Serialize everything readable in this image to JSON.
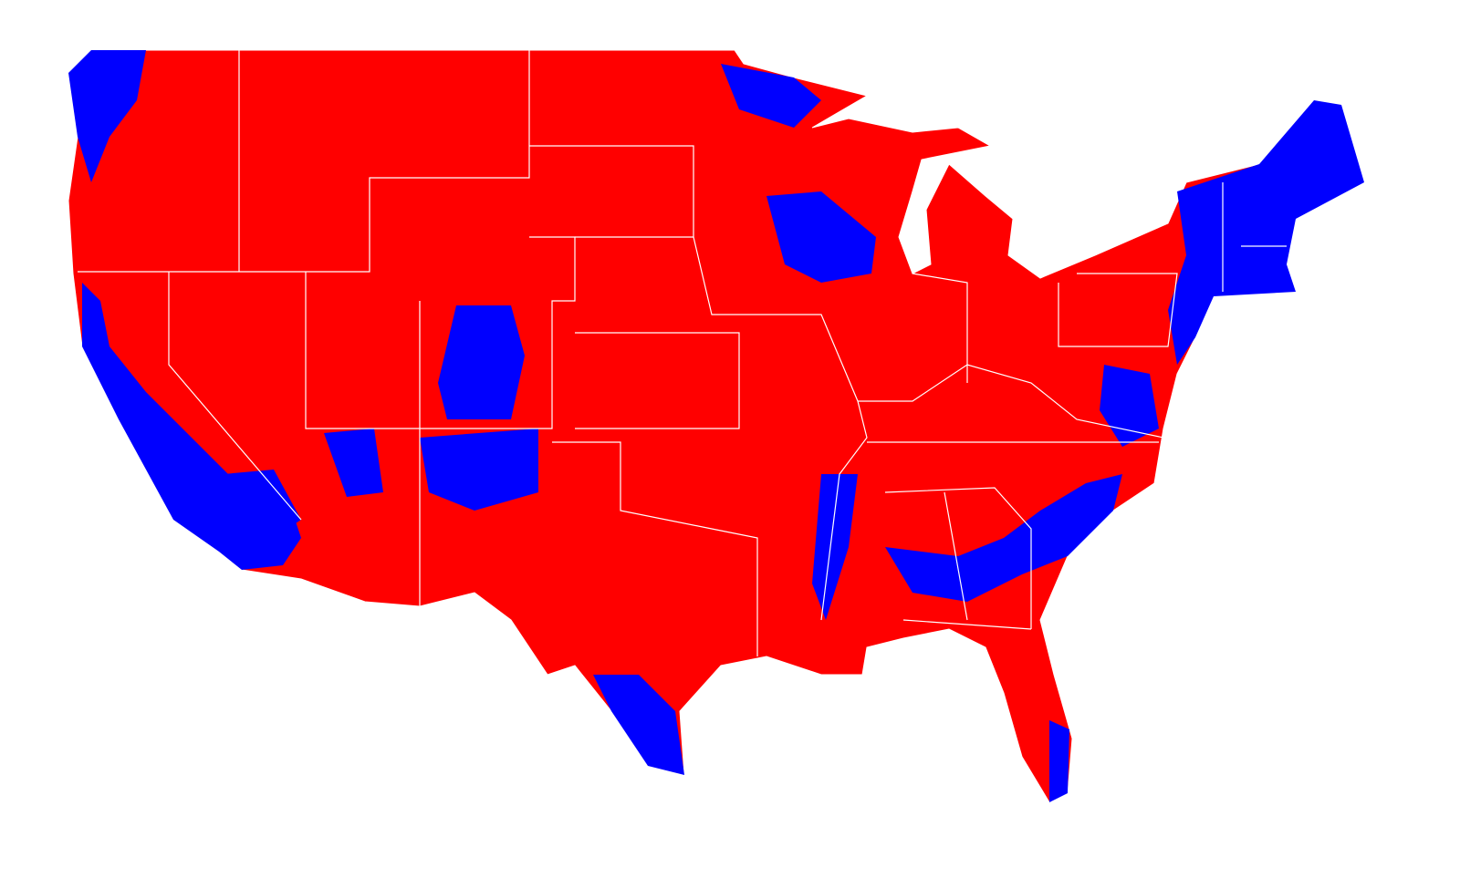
{
  "map": {
    "majority_color": "#ff0000",
    "minority_color": "#0000ff",
    "border_color": "#ffffff",
    "background": "#ffffff"
  }
}
